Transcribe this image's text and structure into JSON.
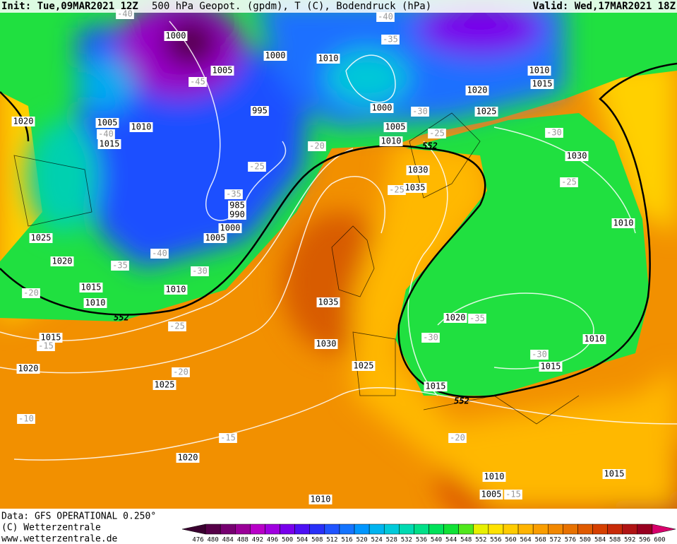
{
  "header": {
    "init": "Init: Tue,09MAR2021 12Z",
    "title": "500 hPa Geopot. (gpdm), T (C), Bodendruck (hPa)",
    "valid": "Valid: Wed,17MAR2021 18Z"
  },
  "footer": {
    "data": "Data: GFS OPERATIONAL 0.250°",
    "copyright": "(C) Wetterzentrale",
    "url": "www.wetterzentrale.de"
  },
  "pressure_labels": [
    "1000",
    "1000",
    "1010",
    "1005",
    "995",
    "1010",
    "1005",
    "1015",
    "1020",
    "1000",
    "1005",
    "1010",
    "1020",
    "1025",
    "1010",
    "1015",
    "1030",
    "1035",
    "1030",
    "985",
    "990",
    "1000",
    "1005",
    "1025",
    "1020",
    "1015",
    "1010",
    "1010",
    "1035",
    "1030",
    "1025",
    "1015",
    "1020",
    "1025",
    "1015",
    "1020",
    "1010",
    "1010",
    "1015",
    "1020",
    "1010",
    "1015",
    "1005",
    "1010"
  ],
  "temperature_labels": [
    "-40",
    "-40",
    "-35",
    "-45",
    "-30",
    "-25",
    "-40",
    "-20",
    "-25",
    "-35",
    "-25",
    "-30",
    "-25",
    "-40",
    "-35",
    "-30",
    "-20",
    "-25",
    "-15",
    "-20",
    "-30",
    "-35",
    "-30",
    "-10",
    "-15",
    "-20",
    "-15"
  ],
  "geopotential_labels": [
    "552",
    "552",
    "552"
  ],
  "colorbar": [
    {
      "label": "476",
      "color": "#3a0030"
    },
    {
      "label": "480",
      "color": "#560048"
    },
    {
      "label": "484",
      "color": "#760070"
    },
    {
      "label": "488",
      "color": "#9a0098"
    },
    {
      "label": "492",
      "color": "#b800c8"
    },
    {
      "label": "496",
      "color": "#a000e0"
    },
    {
      "label": "500",
      "color": "#7800ec"
    },
    {
      "label": "504",
      "color": "#4c10f4"
    },
    {
      "label": "508",
      "color": "#2830f8"
    },
    {
      "label": "512",
      "color": "#2054ff"
    },
    {
      "label": "516",
      "color": "#1474ff"
    },
    {
      "label": "520",
      "color": "#0096ff"
    },
    {
      "label": "524",
      "color": "#00b4f0"
    },
    {
      "label": "528",
      "color": "#00cada"
    },
    {
      "label": "532",
      "color": "#00dab2"
    },
    {
      "label": "536",
      "color": "#00e088"
    },
    {
      "label": "540",
      "color": "#00e25a"
    },
    {
      "label": "544",
      "color": "#10e236"
    },
    {
      "label": "548",
      "color": "#50e81c"
    },
    {
      "label": "552",
      "color": "#e8f000"
    },
    {
      "label": "556",
      "color": "#ffe200"
    },
    {
      "label": "560",
      "color": "#ffcc00"
    },
    {
      "label": "564",
      "color": "#ffb400"
    },
    {
      "label": "568",
      "color": "#fa9e00"
    },
    {
      "label": "572",
      "color": "#f28800"
    },
    {
      "label": "576",
      "color": "#e87200"
    },
    {
      "label": "580",
      "color": "#e05a00"
    },
    {
      "label": "584",
      "color": "#d64000"
    },
    {
      "label": "588",
      "color": "#c82a08"
    },
    {
      "label": "592",
      "color": "#b01414"
    },
    {
      "label": "596",
      "color": "#980020"
    },
    {
      "label": "600",
      "color": "#d8006c"
    }
  ]
}
